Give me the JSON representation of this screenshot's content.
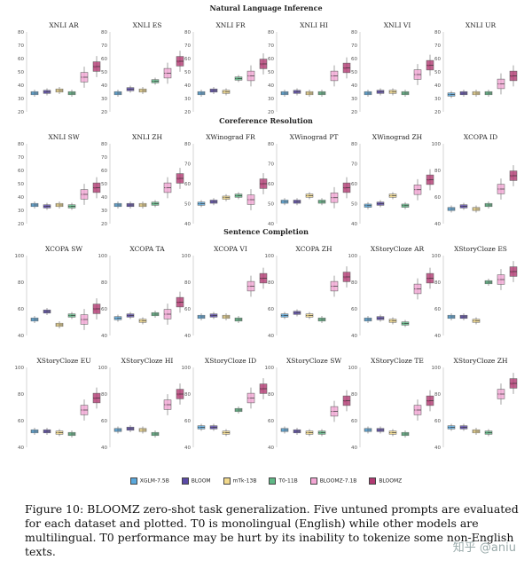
{
  "sections": [
    "Natural Language Inference",
    "Coreference Resolution",
    "Sentence Completion"
  ],
  "models": [
    "XGLM-7.5B",
    "BLOOM",
    "mTk-13B",
    "T0-11B",
    "BLOOMZ-7.1B",
    "BLOOMZ"
  ],
  "colors": [
    "#5aa8dc",
    "#5b4aa6",
    "#f2d98c",
    "#5fb886",
    "#f3a6d4",
    "#b23a72"
  ],
  "caption": "Figure 10: BLOOMZ zero-shot task generalization. Five untuned prompts are evaluated for each dataset and plotted. T0 is monolingual (English) while other models are multilingual. T0 performance may be hurt by its inability to tokenize some non-English texts.",
  "watermark": "知乎 @aniu",
  "chart_data": [
    {
      "type": "box",
      "title": "XNLI AR",
      "section": "Natural Language Inference",
      "ylim": [
        20,
        80
      ],
      "yticks": [
        20,
        30,
        40,
        50,
        60,
        70,
        80
      ],
      "series": [
        {
          "name": "XGLM-7.5B",
          "median": 34
        },
        {
          "name": "BLOOM",
          "median": 35
        },
        {
          "name": "mTk-13B",
          "median": 36
        },
        {
          "name": "T0-11B",
          "median": 34
        },
        {
          "name": "BLOOMZ-7.1B",
          "median": 46
        },
        {
          "name": "BLOOMZ",
          "median": 54
        }
      ]
    },
    {
      "type": "box",
      "title": "XNLI ES",
      "section": "Natural Language Inference",
      "ylim": [
        20,
        80
      ],
      "yticks": [
        20,
        30,
        40,
        50,
        60,
        70,
        80
      ],
      "series": [
        {
          "name": "XGLM-7.5B",
          "median": 34
        },
        {
          "name": "BLOOM",
          "median": 37
        },
        {
          "name": "mTk-13B",
          "median": 36
        },
        {
          "name": "T0-11B",
          "median": 43
        },
        {
          "name": "BLOOMZ-7.1B",
          "median": 49
        },
        {
          "name": "BLOOMZ",
          "median": 58
        }
      ]
    },
    {
      "type": "box",
      "title": "XNLI FR",
      "section": "Natural Language Inference",
      "ylim": [
        20,
        80
      ],
      "yticks": [
        20,
        30,
        40,
        50,
        60,
        70,
        80
      ],
      "series": [
        {
          "name": "XGLM-7.5B",
          "median": 34
        },
        {
          "name": "BLOOM",
          "median": 36
        },
        {
          "name": "mTk-13B",
          "median": 35
        },
        {
          "name": "T0-11B",
          "median": 45
        },
        {
          "name": "BLOOMZ-7.1B",
          "median": 47
        },
        {
          "name": "BLOOMZ",
          "median": 56
        }
      ]
    },
    {
      "type": "box",
      "title": "XNLI HI",
      "section": "Natural Language Inference",
      "ylim": [
        20,
        80
      ],
      "yticks": [
        20,
        30,
        40,
        50,
        60,
        70,
        80
      ],
      "series": [
        {
          "name": "XGLM-7.5B",
          "median": 34
        },
        {
          "name": "BLOOM",
          "median": 35
        },
        {
          "name": "mTk-13B",
          "median": 34
        },
        {
          "name": "T0-11B",
          "median": 34
        },
        {
          "name": "BLOOMZ-7.1B",
          "median": 47
        },
        {
          "name": "BLOOMZ",
          "median": 53
        }
      ]
    },
    {
      "type": "box",
      "title": "XNLI VI",
      "section": "Natural Language Inference",
      "ylim": [
        20,
        80
      ],
      "yticks": [
        20,
        30,
        40,
        50,
        60,
        70,
        80
      ],
      "series": [
        {
          "name": "XGLM-7.5B",
          "median": 34
        },
        {
          "name": "BLOOM",
          "median": 35
        },
        {
          "name": "mTk-13B",
          "median": 35
        },
        {
          "name": "T0-11B",
          "median": 34
        },
        {
          "name": "BLOOMZ-7.1B",
          "median": 48
        },
        {
          "name": "BLOOMZ",
          "median": 55
        }
      ]
    },
    {
      "type": "box",
      "title": "XNLI UR",
      "section": "Natural Language Inference",
      "ylim": [
        20,
        80
      ],
      "yticks": [
        20,
        30,
        40,
        50,
        60,
        70,
        80
      ],
      "series": [
        {
          "name": "XGLM-7.5B",
          "median": 33
        },
        {
          "name": "BLOOM",
          "median": 34
        },
        {
          "name": "mTk-13B",
          "median": 34
        },
        {
          "name": "T0-11B",
          "median": 34
        },
        {
          "name": "BLOOMZ-7.1B",
          "median": 41
        },
        {
          "name": "BLOOMZ",
          "median": 47
        }
      ]
    },
    {
      "type": "box",
      "title": "XNLI SW",
      "section": "Coreference Resolution",
      "ylim": [
        20,
        80
      ],
      "yticks": [
        20,
        30,
        40,
        50,
        60,
        70,
        80
      ],
      "series": [
        {
          "name": "XGLM-7.5B",
          "median": 34
        },
        {
          "name": "BLOOM",
          "median": 33
        },
        {
          "name": "mTk-13B",
          "median": 34
        },
        {
          "name": "T0-11B",
          "median": 33
        },
        {
          "name": "BLOOMZ-7.1B",
          "median": 42
        },
        {
          "name": "BLOOMZ",
          "median": 47
        }
      ]
    },
    {
      "type": "box",
      "title": "XNLI ZH",
      "section": "Coreference Resolution",
      "ylim": [
        20,
        80
      ],
      "yticks": [
        20,
        30,
        40,
        50,
        60,
        70,
        80
      ],
      "series": [
        {
          "name": "XGLM-7.5B",
          "median": 34
        },
        {
          "name": "BLOOM",
          "median": 34
        },
        {
          "name": "mTk-13B",
          "median": 34
        },
        {
          "name": "T0-11B",
          "median": 35
        },
        {
          "name": "BLOOMZ-7.1B",
          "median": 47
        },
        {
          "name": "BLOOMZ",
          "median": 54
        }
      ]
    },
    {
      "type": "box",
      "title": "XWinograd FR",
      "section": "Coreference Resolution",
      "ylim": [
        40,
        80
      ],
      "yticks": [
        40,
        50,
        60,
        70,
        80
      ],
      "series": [
        {
          "name": "XGLM-7.5B",
          "median": 50
        },
        {
          "name": "BLOOM",
          "median": 51
        },
        {
          "name": "mTk-13B",
          "median": 53
        },
        {
          "name": "T0-11B",
          "median": 54
        },
        {
          "name": "BLOOMZ-7.1B",
          "median": 52
        },
        {
          "name": "BLOOMZ",
          "median": 60
        }
      ]
    },
    {
      "type": "box",
      "title": "XWinograd PT",
      "section": "Coreference Resolution",
      "ylim": [
        40,
        80
      ],
      "yticks": [
        40,
        50,
        60,
        70,
        80
      ],
      "series": [
        {
          "name": "XGLM-7.5B",
          "median": 51
        },
        {
          "name": "BLOOM",
          "median": 51
        },
        {
          "name": "mTk-13B",
          "median": 54
        },
        {
          "name": "T0-11B",
          "median": 51
        },
        {
          "name": "BLOOMZ-7.1B",
          "median": 53
        },
        {
          "name": "BLOOMZ",
          "median": 58
        }
      ]
    },
    {
      "type": "box",
      "title": "XWinograd ZH",
      "section": "Coreference Resolution",
      "ylim": [
        40,
        80
      ],
      "yticks": [
        40,
        50,
        60,
        70,
        80
      ],
      "series": [
        {
          "name": "XGLM-7.5B",
          "median": 49
        },
        {
          "name": "BLOOM",
          "median": 50
        },
        {
          "name": "mTk-13B",
          "median": 54
        },
        {
          "name": "T0-11B",
          "median": 49
        },
        {
          "name": "BLOOMZ-7.1B",
          "median": 57
        },
        {
          "name": "BLOOMZ",
          "median": 62
        }
      ]
    },
    {
      "type": "box",
      "title": "XCOPA ID",
      "section": "Coreference Resolution",
      "ylim": [
        40,
        100
      ],
      "yticks": [
        40,
        60,
        80,
        100
      ],
      "series": [
        {
          "name": "XGLM-7.5B",
          "median": 51
        },
        {
          "name": "BLOOM",
          "median": 53
        },
        {
          "name": "mTk-13B",
          "median": 51
        },
        {
          "name": "T0-11B",
          "median": 54
        },
        {
          "name": "BLOOMZ-7.1B",
          "median": 66
        },
        {
          "name": "BLOOMZ",
          "median": 76
        }
      ]
    },
    {
      "type": "box",
      "title": "XCOPA SW",
      "section": "Sentence Completion",
      "ylim": [
        40,
        100
      ],
      "yticks": [
        40,
        60,
        80,
        100
      ],
      "series": [
        {
          "name": "XGLM-7.5B",
          "median": 52
        },
        {
          "name": "BLOOM",
          "median": 58
        },
        {
          "name": "mTk-13B",
          "median": 48
        },
        {
          "name": "T0-11B",
          "median": 55
        },
        {
          "name": "BLOOMZ-7.1B",
          "median": 52
        },
        {
          "name": "BLOOMZ",
          "median": 60
        }
      ]
    },
    {
      "type": "box",
      "title": "XCOPA TA",
      "section": "Sentence Completion",
      "ylim": [
        40,
        100
      ],
      "yticks": [
        40,
        60,
        80,
        100
      ],
      "series": [
        {
          "name": "XGLM-7.5B",
          "median": 53
        },
        {
          "name": "BLOOM",
          "median": 55
        },
        {
          "name": "mTk-13B",
          "median": 51
        },
        {
          "name": "T0-11B",
          "median": 56
        },
        {
          "name": "BLOOMZ-7.1B",
          "median": 56
        },
        {
          "name": "BLOOMZ",
          "median": 65
        }
      ]
    },
    {
      "type": "box",
      "title": "XCOPA VI",
      "section": "Sentence Completion",
      "ylim": [
        40,
        100
      ],
      "yticks": [
        40,
        60,
        80,
        100
      ],
      "series": [
        {
          "name": "XGLM-7.5B",
          "median": 54
        },
        {
          "name": "BLOOM",
          "median": 55
        },
        {
          "name": "mTk-13B",
          "median": 54
        },
        {
          "name": "T0-11B",
          "median": 52
        },
        {
          "name": "BLOOMZ-7.1B",
          "median": 77
        },
        {
          "name": "BLOOMZ",
          "median": 83
        }
      ]
    },
    {
      "type": "box",
      "title": "XCOPA ZH",
      "section": "Sentence Completion",
      "ylim": [
        40,
        100
      ],
      "yticks": [
        40,
        60,
        80,
        100
      ],
      "series": [
        {
          "name": "XGLM-7.5B",
          "median": 55
        },
        {
          "name": "BLOOM",
          "median": 57
        },
        {
          "name": "mTk-13B",
          "median": 55
        },
        {
          "name": "T0-11B",
          "median": 52
        },
        {
          "name": "BLOOMZ-7.1B",
          "median": 77
        },
        {
          "name": "BLOOMZ",
          "median": 84
        }
      ]
    },
    {
      "type": "box",
      "title": "XStoryCloze AR",
      "section": "Sentence Completion",
      "ylim": [
        40,
        100
      ],
      "yticks": [
        40,
        60,
        80,
        100
      ],
      "series": [
        {
          "name": "XGLM-7.5B",
          "median": 52
        },
        {
          "name": "BLOOM",
          "median": 53
        },
        {
          "name": "mTk-13B",
          "median": 51
        },
        {
          "name": "T0-11B",
          "median": 49
        },
        {
          "name": "BLOOMZ-7.1B",
          "median": 75
        },
        {
          "name": "BLOOMZ",
          "median": 83
        }
      ]
    },
    {
      "type": "box",
      "title": "XStoryCloze ES",
      "section": "Sentence Completion",
      "ylim": [
        40,
        100
      ],
      "yticks": [
        40,
        60,
        80,
        100
      ],
      "series": [
        {
          "name": "XGLM-7.5B",
          "median": 54
        },
        {
          "name": "BLOOM",
          "median": 54
        },
        {
          "name": "mTk-13B",
          "median": 51
        },
        {
          "name": "T0-11B",
          "median": 80
        },
        {
          "name": "BLOOMZ-7.1B",
          "median": 82
        },
        {
          "name": "BLOOMZ",
          "median": 88
        }
      ]
    },
    {
      "type": "box",
      "title": "XStoryCloze EU",
      "section": "Sentence Completion",
      "ylim": [
        40,
        100
      ],
      "yticks": [
        40,
        60,
        80,
        100
      ],
      "series": [
        {
          "name": "XGLM-7.5B",
          "median": 52
        },
        {
          "name": "BLOOM",
          "median": 52
        },
        {
          "name": "mTk-13B",
          "median": 51
        },
        {
          "name": "T0-11B",
          "median": 50
        },
        {
          "name": "BLOOMZ-7.1B",
          "median": 68
        },
        {
          "name": "BLOOMZ",
          "median": 77
        }
      ]
    },
    {
      "type": "box",
      "title": "XStoryCloze HI",
      "section": "Sentence Completion",
      "ylim": [
        40,
        100
      ],
      "yticks": [
        40,
        60,
        80,
        100
      ],
      "series": [
        {
          "name": "XGLM-7.5B",
          "median": 53
        },
        {
          "name": "BLOOM",
          "median": 54
        },
        {
          "name": "mTk-13B",
          "median": 53
        },
        {
          "name": "T0-11B",
          "median": 50
        },
        {
          "name": "BLOOMZ-7.1B",
          "median": 72
        },
        {
          "name": "BLOOMZ",
          "median": 80
        }
      ]
    },
    {
      "type": "box",
      "title": "XStoryCloze ID",
      "section": "Sentence Completion",
      "ylim": [
        40,
        100
      ],
      "yticks": [
        40,
        60,
        80,
        100
      ],
      "series": [
        {
          "name": "XGLM-7.5B",
          "median": 55
        },
        {
          "name": "BLOOM",
          "median": 55
        },
        {
          "name": "mTk-13B",
          "median": 51
        },
        {
          "name": "T0-11B",
          "median": 68
        },
        {
          "name": "BLOOMZ-7.1B",
          "median": 77
        },
        {
          "name": "BLOOMZ",
          "median": 84
        }
      ]
    },
    {
      "type": "box",
      "title": "XStoryCloze SW",
      "section": "Sentence Completion",
      "ylim": [
        40,
        100
      ],
      "yticks": [
        40,
        60,
        80,
        100
      ],
      "series": [
        {
          "name": "XGLM-7.5B",
          "median": 53
        },
        {
          "name": "BLOOM",
          "median": 52
        },
        {
          "name": "mTk-13B",
          "median": 51
        },
        {
          "name": "T0-11B",
          "median": 51
        },
        {
          "name": "BLOOMZ-7.1B",
          "median": 67
        },
        {
          "name": "BLOOMZ",
          "median": 75
        }
      ]
    },
    {
      "type": "box",
      "title": "XStoryCloze TE",
      "section": "Sentence Completion",
      "ylim": [
        40,
        100
      ],
      "yticks": [
        40,
        60,
        80,
        100
      ],
      "series": [
        {
          "name": "XGLM-7.5B",
          "median": 53
        },
        {
          "name": "BLOOM",
          "median": 53
        },
        {
          "name": "mTk-13B",
          "median": 51
        },
        {
          "name": "T0-11B",
          "median": 50
        },
        {
          "name": "BLOOMZ-7.1B",
          "median": 68
        },
        {
          "name": "BLOOMZ",
          "median": 75
        }
      ]
    },
    {
      "type": "box",
      "title": "XStoryCloze ZH",
      "section": "Sentence Completion",
      "ylim": [
        40,
        100
      ],
      "yticks": [
        40,
        60,
        80,
        100
      ],
      "series": [
        {
          "name": "XGLM-7.5B",
          "median": 55
        },
        {
          "name": "BLOOM",
          "median": 55
        },
        {
          "name": "mTk-13B",
          "median": 52
        },
        {
          "name": "T0-11B",
          "median": 51
        },
        {
          "name": "BLOOMZ-7.1B",
          "median": 80
        },
        {
          "name": "BLOOMZ",
          "median": 88
        }
      ]
    }
  ]
}
